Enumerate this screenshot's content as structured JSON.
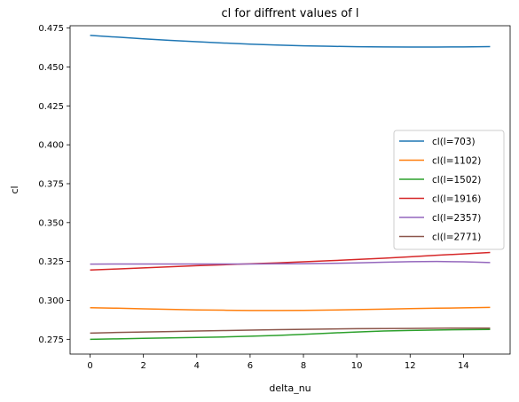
{
  "chart_data": {
    "type": "line",
    "title": "cl for diffrent values of l",
    "xlabel": "delta_nu",
    "ylabel": "cl",
    "xlim": [
      -0.75,
      15.75
    ],
    "ylim": [
      0.2655,
      0.4765
    ],
    "xticks": [
      0,
      2,
      4,
      6,
      8,
      10,
      12,
      14
    ],
    "xtick_labels": [
      "0",
      "2",
      "4",
      "6",
      "8",
      "10",
      "12",
      "14"
    ],
    "yticks": [
      0.275,
      0.3,
      0.325,
      0.35,
      0.375,
      0.4,
      0.425,
      0.45,
      0.475
    ],
    "ytick_labels": [
      "0.275",
      "0.300",
      "0.325",
      "0.350",
      "0.375",
      "0.400",
      "0.425",
      "0.450",
      "0.475"
    ],
    "grid": false,
    "legend_position": "center-right",
    "x": [
      0,
      1,
      2,
      3,
      4,
      5,
      6,
      7,
      8,
      9,
      10,
      11,
      12,
      13,
      14,
      15
    ],
    "series": [
      {
        "name": "cl(l=703)",
        "color": "#1f77b4",
        "values": [
          0.4703,
          0.4692,
          0.4681,
          0.4671,
          0.4662,
          0.4654,
          0.4647,
          0.4641,
          0.4636,
          0.4633,
          0.463,
          0.4629,
          0.4628,
          0.4628,
          0.4629,
          0.4631
        ]
      },
      {
        "name": "cl(l=1102)",
        "color": "#ff7f0e",
        "values": [
          0.2953,
          0.295,
          0.2946,
          0.2942,
          0.2939,
          0.2937,
          0.2935,
          0.2935,
          0.2936,
          0.2938,
          0.2941,
          0.2944,
          0.2947,
          0.295,
          0.2952,
          0.2955
        ]
      },
      {
        "name": "cl(l=1502)",
        "color": "#2ca02c",
        "values": [
          0.275,
          0.2753,
          0.2756,
          0.2759,
          0.2762,
          0.2765,
          0.277,
          0.2775,
          0.2782,
          0.279,
          0.2797,
          0.2803,
          0.2807,
          0.281,
          0.2812,
          0.2813
        ]
      },
      {
        "name": "cl(l=1916)",
        "color": "#d62728",
        "values": [
          0.3195,
          0.3202,
          0.3209,
          0.3216,
          0.3223,
          0.3229,
          0.3235,
          0.3241,
          0.3248,
          0.3255,
          0.3263,
          0.3271,
          0.328,
          0.329,
          0.3299,
          0.3308
        ]
      },
      {
        "name": "cl(l=2357)",
        "color": "#9467bd",
        "values": [
          0.3233,
          0.3234,
          0.3234,
          0.3234,
          0.3234,
          0.3234,
          0.3234,
          0.3235,
          0.3236,
          0.3238,
          0.3241,
          0.3245,
          0.3249,
          0.325,
          0.3248,
          0.3243
        ]
      },
      {
        "name": "cl(l=2771)",
        "color": "#8c564b",
        "values": [
          0.279,
          0.2794,
          0.2797,
          0.28,
          0.2803,
          0.2806,
          0.2809,
          0.2812,
          0.2814,
          0.2816,
          0.2818,
          0.2819,
          0.282,
          0.2821,
          0.2822,
          0.2822
        ]
      }
    ]
  }
}
